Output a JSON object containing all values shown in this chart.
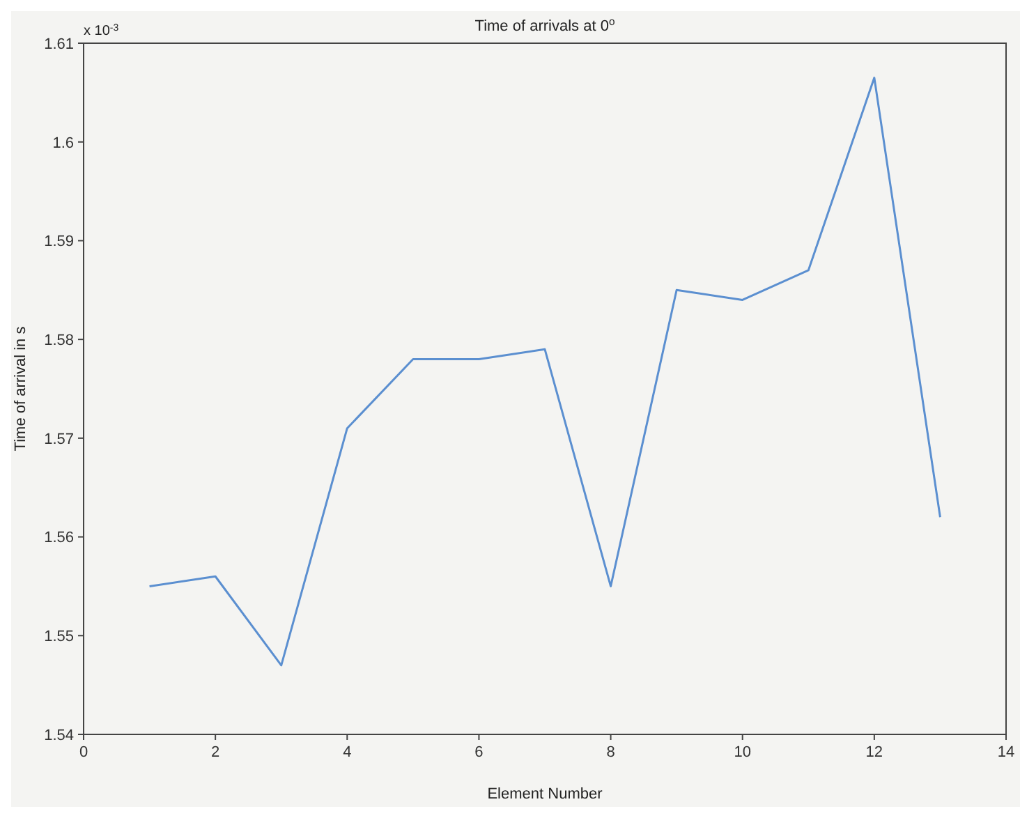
{
  "chart_data": {
    "type": "line",
    "title": "Time of arrivals at 0$^{o}$",
    "xlabel": "Element Number",
    "ylabel": "Time of arrival in s",
    "annotations": [
      "x 10$^{-3}$"
    ],
    "x": [
      1,
      2,
      3,
      4,
      5,
      6,
      7,
      8,
      9,
      10,
      11,
      12,
      13
    ],
    "series": [
      {
        "color": "#5b8fd0",
        "values": [
          1.555,
          1.556,
          1.547,
          1.571,
          1.578,
          1.578,
          1.579,
          1.555,
          1.585,
          1.584,
          1.587,
          1.6065,
          1.562
        ]
      }
    ],
    "xlim": [
      0,
      14
    ],
    "xticks": [
      0,
      2,
      4,
      6,
      8,
      10,
      12,
      14
    ],
    "ylim": [
      1.54,
      1.61
    ],
    "yticks": [
      1.54,
      1.55,
      1.56,
      1.57,
      1.58,
      1.59,
      1.6,
      1.61
    ],
    "grid": false,
    "legend": false,
    "marker": "none",
    "line_style": "solid"
  }
}
